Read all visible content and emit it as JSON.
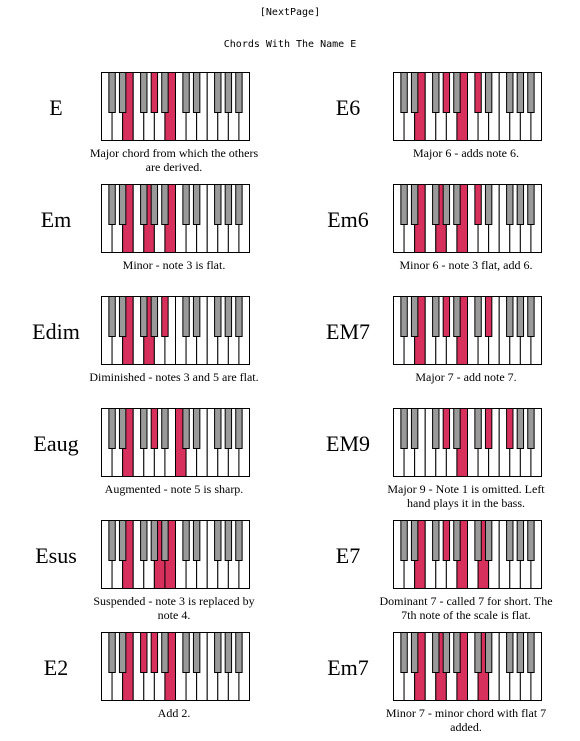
{
  "header": {
    "next_page_label": "[NextPage]",
    "title": "Chords With The Name E"
  },
  "colors": {
    "highlight": "#d8305c",
    "white_key": "#ffffff",
    "black_key": "#9a9a9a",
    "outline": "#000000"
  },
  "chords": [
    {
      "name": "E",
      "description": "Major chord from which the others are derived.",
      "highlighted_keys": [
        "E4",
        "G#4",
        "B4"
      ]
    },
    {
      "name": "E6",
      "description": "Major 6 - adds note 6.",
      "highlighted_keys": [
        "E4",
        "G#4",
        "B4",
        "C#5"
      ]
    },
    {
      "name": "Em",
      "description": "Minor - note 3 is flat.",
      "highlighted_keys": [
        "E4",
        "G4",
        "B4"
      ]
    },
    {
      "name": "Em6",
      "description": "Minor 6 - note 3 flat, add 6.",
      "highlighted_keys": [
        "E4",
        "G4",
        "B4",
        "C#5"
      ]
    },
    {
      "name": "Edim",
      "description": "Diminished - notes 3 and 5 are flat.",
      "highlighted_keys": [
        "E4",
        "G4",
        "A#4"
      ]
    },
    {
      "name": "EM7",
      "description": "Major 7 - add note 7.",
      "highlighted_keys": [
        "E4",
        "G#4",
        "B4",
        "D#5"
      ]
    },
    {
      "name": "Eaug",
      "description": "Augmented - note 5 is sharp.",
      "highlighted_keys": [
        "E4",
        "G#4",
        "C5"
      ]
    },
    {
      "name": "EM9",
      "description": "Major 9 - Note 1 is omitted. Left hand plays it in the bass.",
      "highlighted_keys": [
        "G#4",
        "B4",
        "D#5",
        "F#5"
      ]
    },
    {
      "name": "Esus",
      "description": "Suspended - note 3 is replaced by note 4.",
      "highlighted_keys": [
        "E4",
        "A4",
        "B4"
      ]
    },
    {
      "name": "E7",
      "description": "Dominant 7 - called 7 for short. The 7th note of the scale is flat.",
      "highlighted_keys": [
        "E4",
        "G#4",
        "B4",
        "D5"
      ]
    },
    {
      "name": "E2",
      "description": "Add 2.",
      "highlighted_keys": [
        "E4",
        "F#4",
        "G#4",
        "B4"
      ]
    },
    {
      "name": "Em7",
      "description": "Minor 7 - minor chord with flat 7 added.",
      "highlighted_keys": [
        "E4",
        "G4",
        "B4",
        "D5"
      ]
    }
  ]
}
